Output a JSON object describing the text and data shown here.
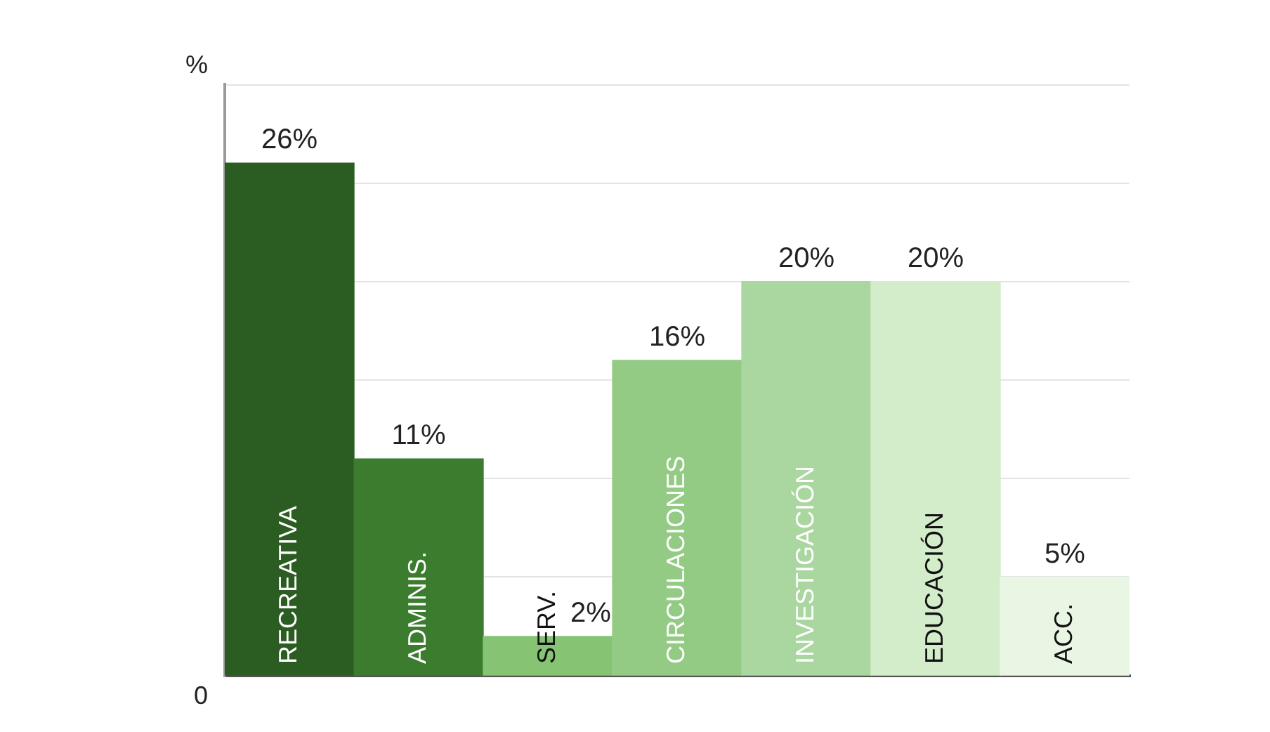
{
  "chart_data": {
    "type": "bar",
    "ylabel": "%",
    "categories": [
      "RECREATIVA",
      "ADMINIS.",
      "SERV.",
      "CIRCULACIONES",
      "INVESTIGACIÓN",
      "EDUCACIÓN",
      "ACC."
    ],
    "values": [
      26,
      11,
      2,
      16,
      20,
      20,
      5
    ],
    "colors": [
      "#2b5c21",
      "#3b7c2e",
      "#86c474",
      "#93cb84",
      "#aad7a0",
      "#d3ecca",
      "#e9f6e4"
    ],
    "value_labels": [
      "26%",
      "11%",
      "2%",
      "16%",
      "20%",
      "20%",
      "5%"
    ],
    "annotations": [
      "0"
    ],
    "grid": "y",
    "legend": false
  }
}
